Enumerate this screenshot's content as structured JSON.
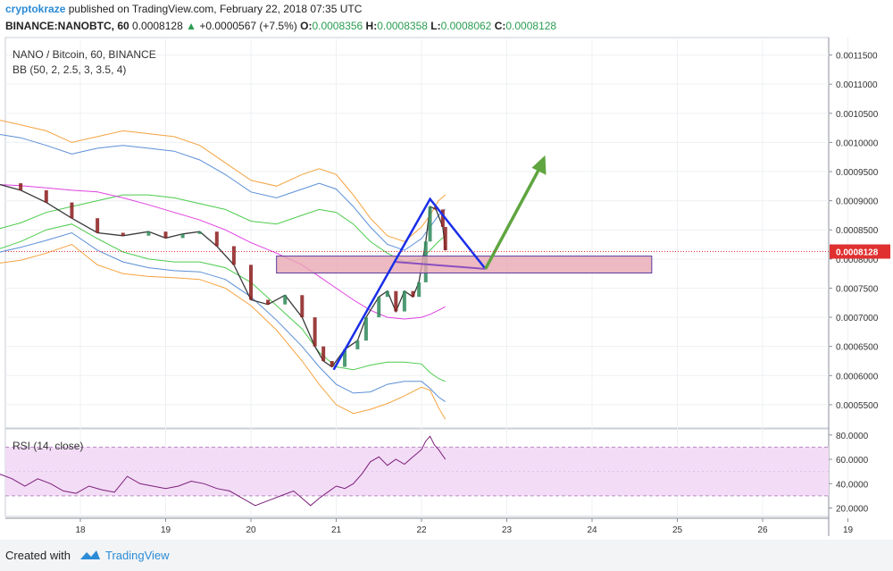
{
  "header": {
    "author": "cryptokraze",
    "published": "published on TradingView.com, February 22, 2018 07:35 UTC",
    "symbol": "BINANCE:NANOBTC, 60",
    "last": "0.0008128",
    "change_arrow": "▲",
    "change": "+0.0000567 (+7.5%)",
    "o_label": "O:",
    "o_value": "0.0008356",
    "h_label": "H:",
    "h_value": "0.0008358",
    "l_label": "L:",
    "l_value": "0.0008062",
    "c_label": "C:",
    "c_value": "0.0008128"
  },
  "footer": {
    "created_with": "Created with",
    "brand": "TradingView"
  },
  "colors": {
    "bull": "#2f8a5a",
    "bear": "#8b1c1c",
    "outer_band": "#f5a340",
    "mid_band": "#5b8fd6",
    "inner_band": "#4ccb4c",
    "basis": "#e040e0",
    "rsi": "#7a1f7a",
    "pattern": "#1a2ee8",
    "zone_fill": "#e8a7b3",
    "zone_stroke": "#5a3ea0",
    "target_arrow": "#5fa540",
    "last_price_bg": "#e03030",
    "rsi_band": "#f3dcf6"
  },
  "chart_data": [
    {
      "type": "candlestick",
      "title": "NANO / Bitcoin, 60, BINANCE",
      "indicator": "BB (50, 2, 2.5, 3, 3.5, 4)",
      "x_ticks": [
        "18",
        "19",
        "20",
        "21",
        "22",
        "23",
        "24",
        "25",
        "26",
        "19"
      ],
      "y_ticks": [
        "0.0011500",
        "0.0011000",
        "0.0010500",
        "0.0010000",
        "0.0009500",
        "0.0009000",
        "0.0008500",
        "0.0008000",
        "0.0007500",
        "0.0007000",
        "0.0006500",
        "0.0006000",
        "0.0005500"
      ],
      "ylim": [
        0.00051,
        0.00118
      ],
      "last_price": 0.0008128,
      "last_price_label": "0.0008128",
      "price_path": [
        [
          17.0,
          0.00093
        ],
        [
          17.3,
          0.000918
        ],
        [
          17.6,
          0.000897
        ],
        [
          17.9,
          0.00087
        ],
        [
          18.2,
          0.000845
        ],
        [
          18.5,
          0.00084
        ],
        [
          18.8,
          0.000847
        ],
        [
          19.0,
          0.000836
        ],
        [
          19.2,
          0.000843
        ],
        [
          19.4,
          0.000847
        ],
        [
          19.6,
          0.000822
        ],
        [
          19.8,
          0.00079
        ],
        [
          20.0,
          0.00073
        ],
        [
          20.2,
          0.000722
        ],
        [
          20.4,
          0.000738
        ],
        [
          20.6,
          0.0007
        ],
        [
          20.75,
          0.00065
        ],
        [
          20.85,
          0.000625
        ],
        [
          20.95,
          0.000615
        ],
        [
          21.1,
          0.000645
        ],
        [
          21.25,
          0.00066
        ],
        [
          21.35,
          0.0007
        ],
        [
          21.5,
          0.000735
        ],
        [
          21.6,
          0.000745
        ],
        [
          21.7,
          0.00071
        ],
        [
          21.8,
          0.000745
        ],
        [
          21.9,
          0.000735
        ],
        [
          21.97,
          0.00076
        ],
        [
          22.05,
          0.00083
        ],
        [
          22.1,
          0.00089
        ],
        [
          22.17,
          0.000885
        ],
        [
          22.25,
          0.000855
        ],
        [
          22.28,
          0.000815
        ]
      ],
      "bands": {
        "x": [
          16.75,
          17.0,
          17.3,
          17.6,
          17.9,
          18.2,
          18.5,
          18.8,
          19.1,
          19.4,
          19.7,
          20.0,
          20.3,
          20.6,
          20.8,
          21.0,
          21.2,
          21.4,
          21.6,
          21.8,
          22.0,
          22.1,
          22.2,
          22.28
        ],
        "outer_upper": [
          0.001045,
          0.00104,
          0.00103,
          0.00102,
          0.001,
          0.00101,
          0.00102,
          0.001015,
          0.00101,
          0.000995,
          0.000965,
          0.000935,
          0.000925,
          0.000945,
          0.000955,
          0.000945,
          0.00091,
          0.00087,
          0.00084,
          0.00083,
          0.000855,
          0.000875,
          0.0009,
          0.00091
        ],
        "mid_upper": [
          0.00102,
          0.001015,
          0.001008,
          0.000995,
          0.00098,
          0.00099,
          0.000995,
          0.00099,
          0.000985,
          0.00097,
          0.000945,
          0.000915,
          0.000905,
          0.00092,
          0.00093,
          0.00092,
          0.00089,
          0.000855,
          0.000825,
          0.000815,
          0.000835,
          0.000855,
          0.000875,
          0.000885
        ],
        "inner_upper": [
          0.000845,
          0.00085,
          0.000862,
          0.00088,
          0.00089,
          0.0009,
          0.00091,
          0.00091,
          0.000905,
          0.000895,
          0.000885,
          0.000865,
          0.00086,
          0.000875,
          0.000885,
          0.00088,
          0.00086,
          0.00083,
          0.00081,
          0.000795,
          0.0008,
          0.000815,
          0.00083,
          0.00084
        ],
        "basis": [
          0.00093,
          0.000928,
          0.000926,
          0.000922,
          0.000918,
          0.000915,
          0.000905,
          0.000893,
          0.00088,
          0.000867,
          0.00085,
          0.000828,
          0.00081,
          0.00079,
          0.00077,
          0.00075,
          0.00073,
          0.000712,
          0.0007,
          0.000697,
          0.0007,
          0.000705,
          0.000712,
          0.000718
        ],
        "inner_lower": [
          0.00081,
          0.000815,
          0.00083,
          0.00085,
          0.00086,
          0.000835,
          0.000812,
          0.0008,
          0.000795,
          0.000795,
          0.000785,
          0.00076,
          0.00072,
          0.00068,
          0.00064,
          0.000615,
          0.00061,
          0.000618,
          0.000623,
          0.000623,
          0.00062,
          0.000605,
          0.000595,
          0.00059
        ],
        "mid_lower": [
          0.000808,
          0.00081,
          0.00082,
          0.000832,
          0.000845,
          0.000815,
          0.000795,
          0.000785,
          0.00078,
          0.000778,
          0.000765,
          0.000735,
          0.000695,
          0.00065,
          0.000615,
          0.000585,
          0.00057,
          0.000572,
          0.000585,
          0.00059,
          0.00059,
          0.000578,
          0.000563,
          0.000555
        ],
        "outer_lower": [
          0.00079,
          0.000792,
          0.000798,
          0.00081,
          0.000825,
          0.00079,
          0.000775,
          0.00077,
          0.000768,
          0.000765,
          0.00075,
          0.00072,
          0.000678,
          0.000625,
          0.000585,
          0.00055,
          0.000535,
          0.000542,
          0.000552,
          0.000565,
          0.00058,
          0.000575,
          0.000545,
          0.000525
        ]
      },
      "pattern": {
        "A": [
          20.97,
          0.00061
        ],
        "B": [
          22.1,
          0.000903
        ],
        "C": [
          22.75,
          0.000783
        ],
        "zone_x": [
          20.3,
          24.7
        ],
        "zone_y": [
          0.000776,
          0.000805
        ],
        "target": [
          23.45,
          0.000978
        ]
      }
    },
    {
      "type": "line",
      "title": "RSI (14, close)",
      "y_ticks": [
        "80.0000",
        "60.0000",
        "40.0000",
        "20.0000"
      ],
      "ylim": [
        13,
        85
      ],
      "band": [
        30,
        70
      ],
      "midline": 50,
      "x": [
        16.75,
        16.9,
        17.05,
        17.2,
        17.35,
        17.5,
        17.65,
        17.8,
        17.95,
        18.1,
        18.25,
        18.4,
        18.55,
        18.7,
        18.85,
        19.0,
        19.15,
        19.3,
        19.45,
        19.6,
        19.75,
        19.9,
        20.05,
        20.2,
        20.35,
        20.5,
        20.6,
        20.7,
        20.8,
        20.9,
        21.0,
        21.1,
        21.2,
        21.3,
        21.4,
        21.5,
        21.6,
        21.7,
        21.8,
        21.9,
        22.0,
        22.05,
        22.1,
        22.15,
        22.2,
        22.28
      ],
      "values": [
        44,
        42,
        48,
        44,
        38,
        44,
        40,
        34,
        32,
        38,
        35,
        33,
        46,
        40,
        38,
        36,
        38,
        42,
        40,
        36,
        34,
        28,
        22,
        26,
        30,
        34,
        28,
        22,
        28,
        33,
        38,
        36,
        40,
        48,
        58,
        62,
        55,
        60,
        56,
        62,
        68,
        75,
        79,
        72,
        68,
        60
      ]
    }
  ]
}
